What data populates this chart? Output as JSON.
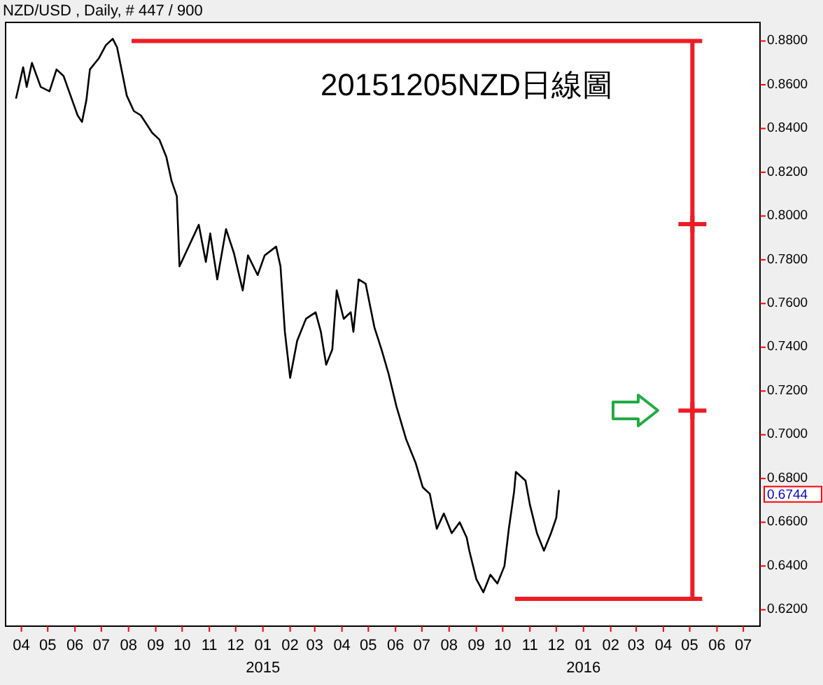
{
  "chart_data": {
    "type": "line",
    "title": "20151205NZD日線圖",
    "subtitle": "NZD/USD , Daily, # 447 / 900",
    "x": [
      "2014-03-26",
      "2014-04-03",
      "2014-04-07",
      "2014-04-13",
      "2014-04-23",
      "2014-05-03",
      "2014-05-11",
      "2014-05-19",
      "2014-05-27",
      "2014-06-04",
      "2014-06-09",
      "2014-06-14",
      "2014-06-18",
      "2014-06-28",
      "2014-07-06",
      "2014-07-14",
      "2014-07-19",
      "2014-07-24",
      "2014-07-30",
      "2014-08-07",
      "2014-08-15",
      "2014-08-28",
      "2014-09-05",
      "2014-09-13",
      "2014-09-19",
      "2014-09-25",
      "2014-09-28",
      "2014-10-20",
      "2014-10-28",
      "2014-11-02",
      "2014-11-10",
      "2014-11-20",
      "2014-11-29",
      "2014-12-09",
      "2014-12-15",
      "2014-12-26",
      "2015-01-03",
      "2015-01-16",
      "2015-01-21",
      "2015-01-26",
      "2015-02-01",
      "2015-02-09",
      "2015-02-19",
      "2015-03-02",
      "2015-03-08",
      "2015-03-14",
      "2015-03-21",
      "2015-03-26",
      "2015-04-03",
      "2015-04-11",
      "2015-04-14",
      "2015-04-20",
      "2015-04-28",
      "2015-05-08",
      "2015-05-16",
      "2015-05-24",
      "2015-06-02",
      "2015-06-13",
      "2015-06-24",
      "2015-07-02",
      "2015-07-10",
      "2015-07-18",
      "2015-07-26",
      "2015-08-04",
      "2015-08-13",
      "2015-08-21",
      "2015-08-24",
      "2015-09-01",
      "2015-09-09",
      "2015-09-17",
      "2015-09-25",
      "2015-10-03",
      "2015-10-08",
      "2015-10-14",
      "2015-10-16",
      "2015-10-27",
      "2015-11-01",
      "2015-11-09",
      "2015-11-17",
      "2015-11-25",
      "2015-12-01",
      "2015-12-04"
    ],
    "series": [
      {
        "color": "#000000",
        "values": [
          0.854,
          0.868,
          0.859,
          0.87,
          0.859,
          0.857,
          0.867,
          0.864,
          0.855,
          0.846,
          0.843,
          0.853,
          0.867,
          0.872,
          0.878,
          0.881,
          0.877,
          0.867,
          0.855,
          0.848,
          0.846,
          0.838,
          0.835,
          0.827,
          0.816,
          0.809,
          0.777,
          0.796,
          0.779,
          0.792,
          0.771,
          0.794,
          0.783,
          0.766,
          0.782,
          0.773,
          0.782,
          0.786,
          0.777,
          0.747,
          0.726,
          0.743,
          0.753,
          0.756,
          0.747,
          0.732,
          0.739,
          0.766,
          0.753,
          0.756,
          0.747,
          0.771,
          0.769,
          0.749,
          0.739,
          0.728,
          0.713,
          0.698,
          0.687,
          0.676,
          0.673,
          0.657,
          0.664,
          0.655,
          0.66,
          0.653,
          0.647,
          0.634,
          0.628,
          0.636,
          0.632,
          0.64,
          0.657,
          0.674,
          0.683,
          0.679,
          0.668,
          0.655,
          0.647,
          0.655,
          0.662,
          0.6744
        ]
      },
      {
        "type": "scatter",
        "marker": "cross",
        "x": [
          "2016-05-04",
          "2016-05-04"
        ],
        "color": "#ee1c24",
        "values": [
          0.7963,
          0.711
        ]
      }
    ],
    "xlim": [
      "2014-03-14",
      "2016-07-20"
    ],
    "xticks": [
      {
        "value": "2014-04-01",
        "label": "04"
      },
      {
        "value": "2014-05-01",
        "label": "05"
      },
      {
        "value": "2014-06-01",
        "label": "06"
      },
      {
        "value": "2014-07-01",
        "label": "07"
      },
      {
        "value": "2014-08-01",
        "label": "08"
      },
      {
        "value": "2014-09-01",
        "label": "09"
      },
      {
        "value": "2014-10-01",
        "label": "10"
      },
      {
        "value": "2014-11-01",
        "label": "11"
      },
      {
        "value": "2014-12-01",
        "label": "12"
      },
      {
        "value": "2015-01-01",
        "label": "01\n2015"
      },
      {
        "value": "2015-02-01",
        "label": "02"
      },
      {
        "value": "2015-03-01",
        "label": "03"
      },
      {
        "value": "2015-04-01",
        "label": "04"
      },
      {
        "value": "2015-05-01",
        "label": "05"
      },
      {
        "value": "2015-06-01",
        "label": "06"
      },
      {
        "value": "2015-07-01",
        "label": "07"
      },
      {
        "value": "2015-08-01",
        "label": "08"
      },
      {
        "value": "2015-09-01",
        "label": "09"
      },
      {
        "value": "2015-10-01",
        "label": "10"
      },
      {
        "value": "2015-11-01",
        "label": "11"
      },
      {
        "value": "2015-12-01",
        "label": "12"
      },
      {
        "value": "2016-01-01",
        "label": "01\n2016"
      },
      {
        "value": "2016-02-01",
        "label": "02"
      },
      {
        "value": "2016-03-01",
        "label": "03"
      },
      {
        "value": "2016-04-01",
        "label": "04"
      },
      {
        "value": "2016-05-01",
        "label": "05"
      },
      {
        "value": "2016-06-01",
        "label": "06"
      },
      {
        "value": "2016-07-01",
        "label": "07"
      }
    ],
    "ylim": [
      0.6125,
      0.8885
    ],
    "yticks": [
      {
        "value": 0.62,
        "label": "0.6200"
      },
      {
        "value": 0.64,
        "label": "0.6400"
      },
      {
        "value": 0.66,
        "label": "0.6600"
      },
      {
        "value": 0.68,
        "label": "0.6800"
      },
      {
        "value": 0.7,
        "label": "0.7000"
      },
      {
        "value": 0.72,
        "label": "0.7200"
      },
      {
        "value": 0.74,
        "label": "0.7400"
      },
      {
        "value": 0.76,
        "label": "0.7600"
      },
      {
        "value": 0.78,
        "label": "0.7800"
      },
      {
        "value": 0.8,
        "label": "0.8000"
      },
      {
        "value": 0.82,
        "label": "0.8200"
      },
      {
        "value": 0.84,
        "label": "0.8400"
      },
      {
        "value": 0.86,
        "label": "0.8600"
      },
      {
        "value": 0.88,
        "label": "0.8800"
      }
    ],
    "annotations": [
      "0.6744"
    ],
    "ref_lines": [
      {
        "axis": "y",
        "value": 0.88,
        "color": "#ee1c24"
      },
      {
        "axis": "y",
        "value": 0.625,
        "color": "#ee1c24"
      },
      {
        "axis": "x",
        "value": "2016-05-04",
        "color": "#ee1c24"
      }
    ],
    "grid": false,
    "marker": "none",
    "line_style": "solid"
  }
}
